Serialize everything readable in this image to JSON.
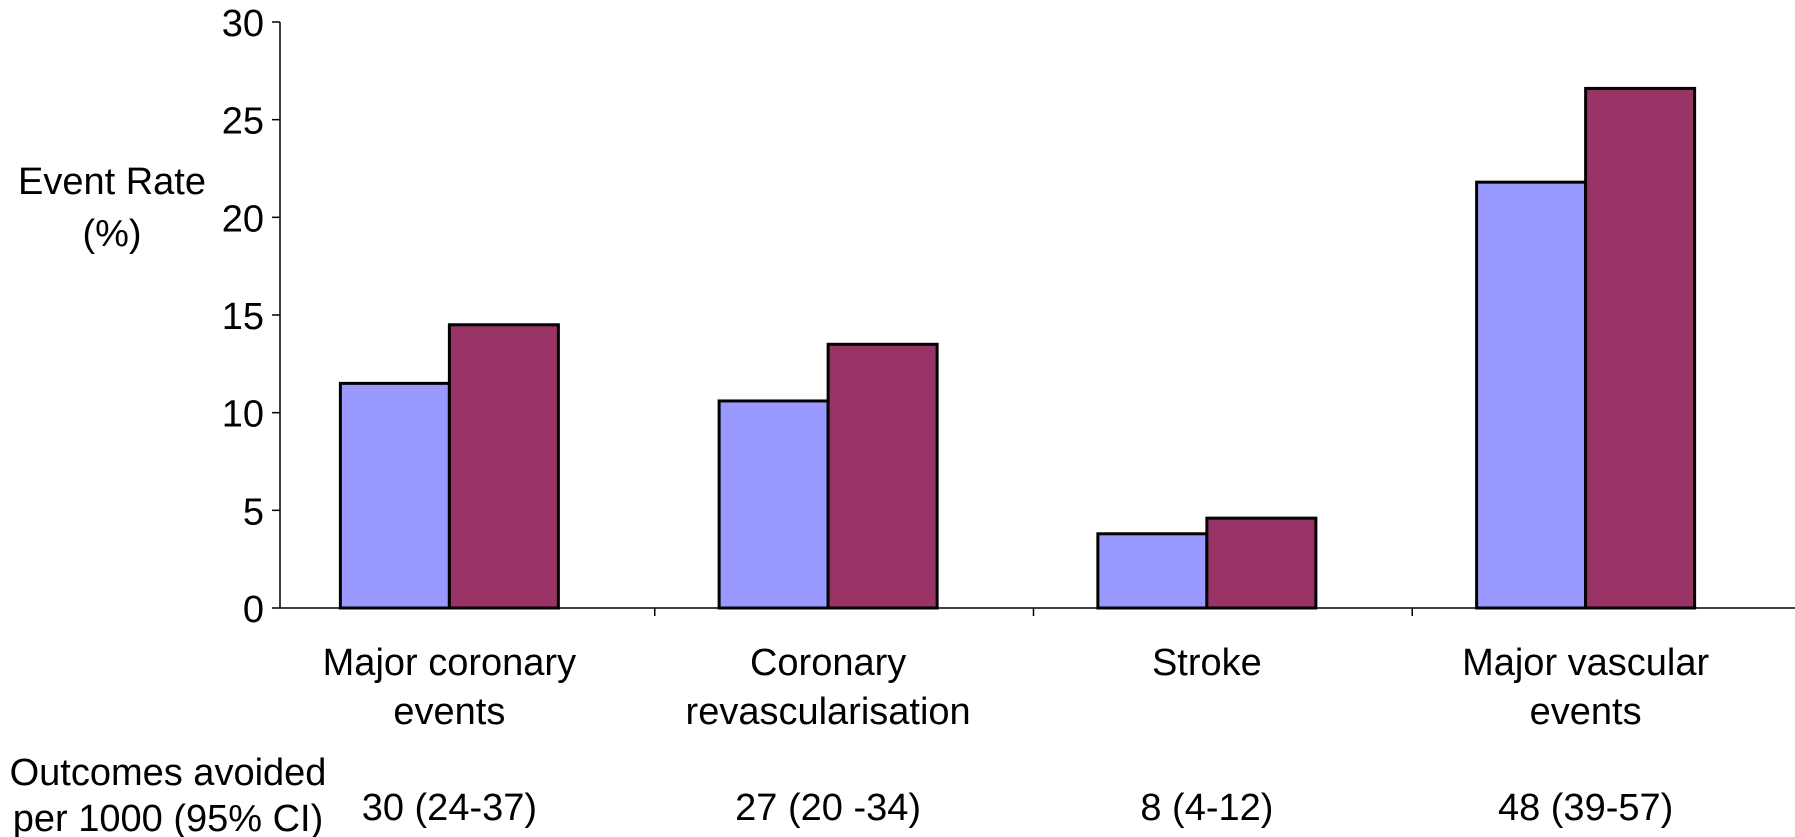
{
  "chart_data": {
    "type": "bar",
    "ylabel_lines": [
      "Event Rate",
      "(%)"
    ],
    "ylim": [
      0,
      30
    ],
    "yticks": [
      0,
      5,
      10,
      15,
      20,
      25,
      30
    ],
    "categories": [
      [
        "Major coronary",
        "events"
      ],
      [
        "Coronary",
        "revascularisation"
      ],
      [
        "Stroke"
      ],
      [
        "Major vascular",
        "events"
      ]
    ],
    "series": [
      {
        "color": "#9999ff",
        "values": [
          11.5,
          10.6,
          3.8,
          21.8
        ]
      },
      {
        "color": "#993366",
        "values": [
          14.5,
          13.5,
          4.6,
          26.6
        ]
      }
    ],
    "outcomes_header": [
      "Outcomes avoided",
      "per 1000 (95% CI)"
    ],
    "outcomes": [
      "30 (24-37)",
      "27 (20 -34)",
      "8 (4-12)",
      "48 (39-57)"
    ],
    "grid": false,
    "legend": "none"
  }
}
